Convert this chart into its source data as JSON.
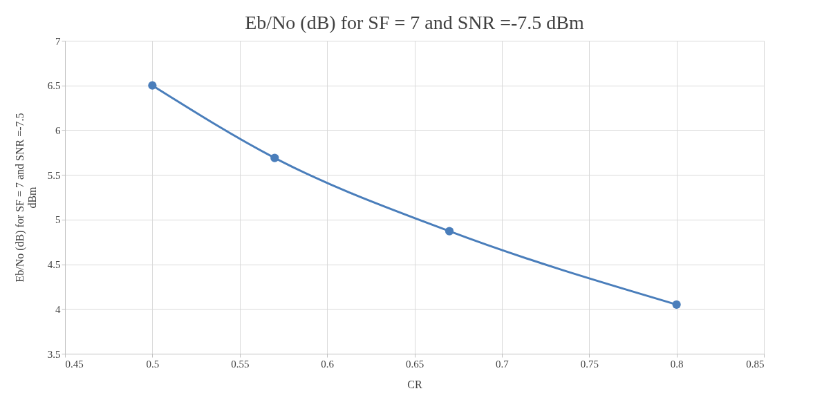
{
  "chart_data": {
    "type": "line",
    "title": "Eb/No (dB) for SF =  7  and SNR =-7.5 dBm",
    "xlabel": "CR",
    "ylabel": "Eb/No (dB) for SF =  7  and SNR =-7.5 dBm",
    "x": [
      0.5,
      0.57,
      0.67,
      0.8
    ],
    "series": [
      {
        "color": "#4a7ebb",
        "values": [
          6.5,
          5.69,
          4.87,
          4.05
        ]
      }
    ],
    "xlim": [
      0.45,
      0.85
    ],
    "xticks": [
      0.45,
      0.5,
      0.55,
      0.6,
      0.65,
      0.7,
      0.75,
      0.8,
      0.85
    ],
    "ylim": [
      3.5,
      7
    ],
    "yticks": [
      3.5,
      4,
      4.5,
      5,
      5.5,
      6,
      6.5,
      7
    ],
    "grid": true,
    "marker": "circle",
    "line_style": "solid"
  }
}
